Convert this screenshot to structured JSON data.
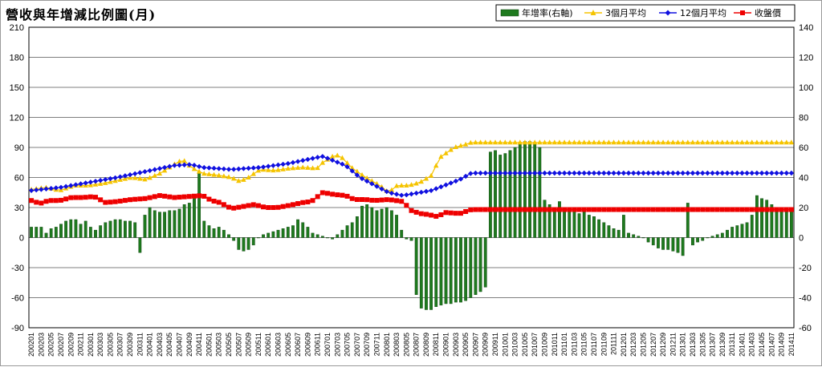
{
  "chart_data": {
    "title": "營收與年增減比例圖(月)",
    "type": "bar+line",
    "legend": [
      {
        "name": "年增率(右軸)",
        "color": "#1e7a1e",
        "marker": "bar"
      },
      {
        "name": "3個月平均",
        "color": "#f5c400",
        "marker": "triangle"
      },
      {
        "name": "12個月平均",
        "color": "#1010e0",
        "marker": "diamond"
      },
      {
        "name": "收盤價",
        "color": "#ee0000",
        "marker": "square"
      }
    ],
    "legend_position": "top-right",
    "y_left": {
      "ticks": [
        "210",
        "180",
        "150",
        "120",
        "90",
        "60",
        "30",
        "0",
        "-30",
        "-60",
        "-90"
      ],
      "min": -90,
      "max": 210
    },
    "y_right": {
      "ticks": [
        "140",
        "120",
        "100",
        "80",
        "60",
        "40",
        "20",
        "0",
        "-20",
        "-40",
        "-60"
      ],
      "min": -60,
      "max": 140
    },
    "grid": true,
    "x_start": "200201",
    "x_labels": [
      "200201",
      "200203",
      "200205",
      "200207",
      "200209",
      "200211",
      "200301",
      "200303",
      "200305",
      "200307",
      "200309",
      "200311",
      "200401",
      "200403",
      "200405",
      "200407",
      "200409",
      "200411",
      "200501",
      "200503",
      "200505",
      "200507",
      "200509",
      "200511",
      "200601",
      "200603",
      "200605",
      "200607",
      "200609",
      "200611",
      "200701",
      "200703",
      "200705",
      "200707",
      "200709",
      "200711",
      "200801",
      "200803",
      "200805",
      "200807",
      "200809",
      "200811",
      "200901",
      "200903",
      "200905",
      "200907",
      "200909",
      "200911",
      "201001",
      "201003",
      "201005",
      "201007",
      "201009",
      "201011",
      "201101",
      "201103",
      "201105",
      "201107",
      "201109",
      "201111",
      "201201",
      "201203",
      "201205",
      "201207",
      "201209",
      "201211",
      "201301",
      "201303",
      "201305",
      "201307",
      "201309",
      "201311",
      "201401",
      "201403",
      "201405",
      "201407",
      "201409",
      "201411"
    ],
    "yoy_right": [
      7,
      7,
      7,
      3,
      6,
      7,
      9,
      11,
      12,
      12,
      9,
      11,
      7,
      5,
      8,
      10,
      11,
      12,
      12,
      11,
      11,
      10,
      -10,
      15,
      20,
      18,
      17,
      17,
      18,
      18,
      19,
      22,
      23,
      28,
      44,
      11,
      8,
      6,
      7,
      5,
      2,
      -2,
      -8,
      -9,
      -8,
      -5,
      0,
      2,
      3,
      4,
      5,
      6,
      7,
      8,
      12,
      10,
      7,
      3,
      2,
      1,
      0,
      -1,
      2,
      5,
      8,
      10,
      14,
      21,
      22,
      20,
      18,
      19,
      20,
      18,
      15,
      5,
      -1,
      -2,
      -38,
      -47,
      -48,
      -48,
      -46,
      -45,
      -44,
      -44,
      -43,
      -43,
      -42,
      -40,
      -38,
      -36,
      -33,
      57,
      58,
      55,
      56,
      58,
      60,
      63,
      64,
      64,
      62,
      60,
      25,
      22,
      20,
      24,
      20,
      19,
      18,
      16,
      17,
      15,
      14,
      12,
      10,
      8,
      6,
      5,
      15,
      3,
      2,
      1,
      0,
      -3,
      -5,
      -7,
      -8,
      -8,
      -9,
      -10,
      -12,
      23,
      -5,
      -3,
      -2,
      0,
      1,
      2,
      3,
      5,
      7,
      8,
      9,
      10,
      15,
      28,
      26,
      25,
      22,
      20,
      19,
      20,
      18,
      16,
      17,
      17,
      16
    ]
  }
}
